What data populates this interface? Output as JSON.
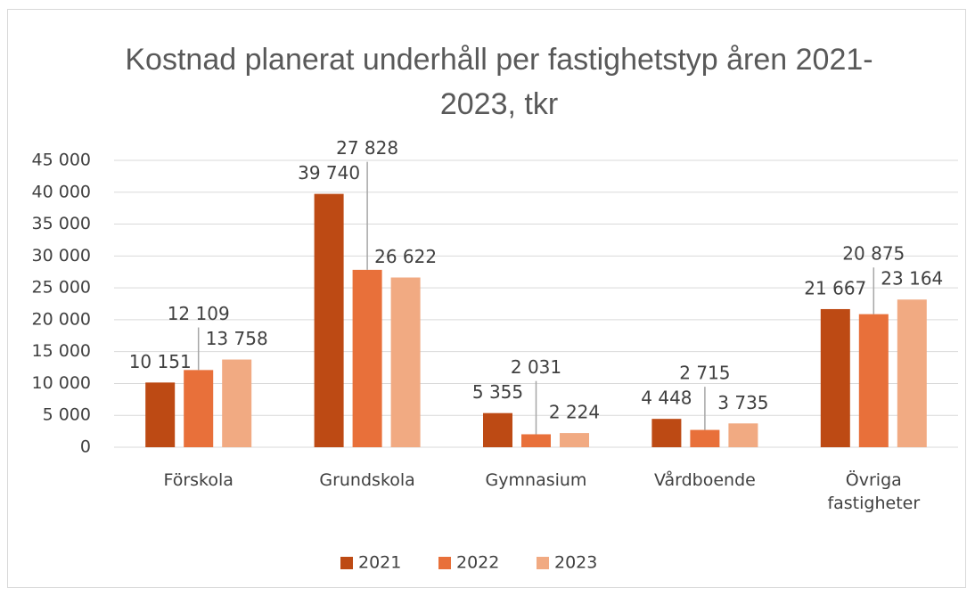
{
  "chart_data": {
    "type": "bar",
    "title": "Kostnad planerat underhåll per fastighetstyp åren 2021-2023, tkr",
    "categories": [
      "Förskola",
      "Grundskola",
      "Gymnasium",
      "Vårdboende",
      "Övriga fastigheter"
    ],
    "series": [
      {
        "name": "2021",
        "color": "#bd4a14",
        "values": [
          10151,
          39740,
          5355,
          4448,
          21667
        ],
        "value_labels": [
          "10 151",
          "39 740",
          "5 355",
          "4 448",
          "21 667"
        ]
      },
      {
        "name": "2022",
        "color": "#e8703a",
        "values": [
          12109,
          27828,
          2031,
          2715,
          20875
        ],
        "value_labels": [
          "12 109",
          "27 828",
          "2 031",
          "2 715",
          "20 875"
        ]
      },
      {
        "name": "2023",
        "color": "#f1aa82",
        "values": [
          13758,
          26622,
          2224,
          3735,
          23164
        ],
        "value_labels": [
          "13 758",
          "26 622",
          "2 224",
          "3 735",
          "23 164"
        ]
      }
    ],
    "ylim": [
      0,
      45000
    ],
    "yticks": [
      {
        "value": 0,
        "label": "0"
      },
      {
        "value": 5000,
        "label": "5 000"
      },
      {
        "value": 10000,
        "label": "10 000"
      },
      {
        "value": 15000,
        "label": "15 000"
      },
      {
        "value": 20000,
        "label": "20 000"
      },
      {
        "value": 25000,
        "label": "25 000"
      },
      {
        "value": 30000,
        "label": "30 000"
      },
      {
        "value": 35000,
        "label": "35 000"
      },
      {
        "value": 40000,
        "label": "40 000"
      },
      {
        "value": 45000,
        "label": "45 000"
      }
    ],
    "grid": true,
    "legend": "bottom"
  }
}
